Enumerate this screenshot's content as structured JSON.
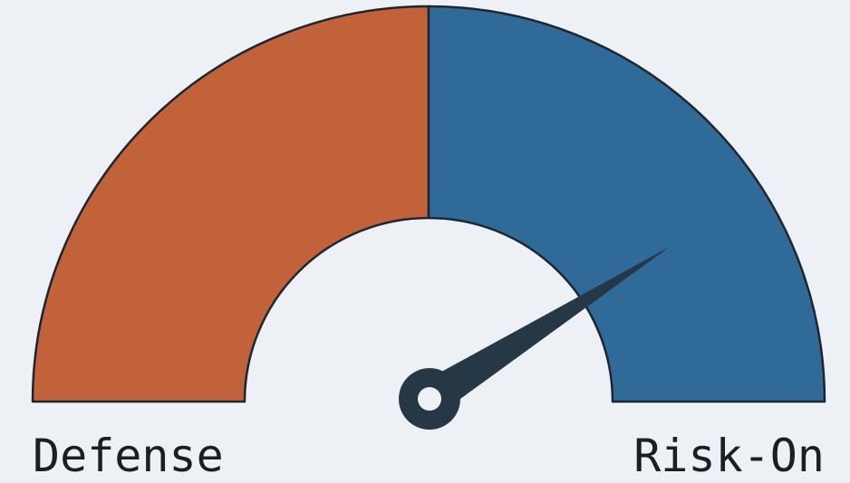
{
  "gauge": {
    "left_label": "Defense",
    "right_label": "Risk-On",
    "segments": [
      {
        "side": "left",
        "color": "#c2623b"
      },
      {
        "side": "right",
        "color": "#2f6a98"
      }
    ],
    "needle": {
      "color": "#263746",
      "level": 0.82
    },
    "outline_color": "#1e2630"
  }
}
